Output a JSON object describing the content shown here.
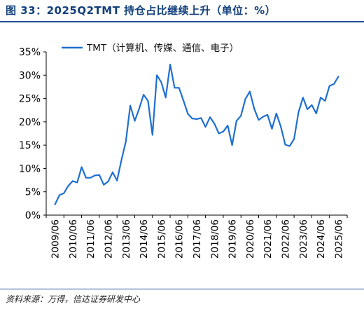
{
  "header": {
    "title": "图 33：2025Q2TMT 持仓占比继续上升（单位：%）"
  },
  "footer": {
    "source": "资料来源：万得，信达证券研发中心"
  },
  "chart_data": {
    "type": "line",
    "title": "",
    "xlabel": "",
    "ylabel": "",
    "ylim": [
      0,
      35
    ],
    "yticks": [
      "0%",
      "5%",
      "10%",
      "15%",
      "20%",
      "25%",
      "30%",
      "35%"
    ],
    "xticks": [
      "2009/06",
      "2010/06",
      "2011/06",
      "2012/06",
      "2013/06",
      "2014/06",
      "2015/06",
      "2016/06",
      "2017/06",
      "2018/06",
      "2019/06",
      "2020/06",
      "2021/06",
      "2022/06",
      "2023/06",
      "2024/06",
      "2025/06"
    ],
    "legend_position": "top-left",
    "grid": false,
    "series": [
      {
        "name": "TMT（计算机、传媒、通信、电子）",
        "color": "#1f6fd1",
        "x": [
          "2009/06",
          "2009/09",
          "2009/12",
          "2010/03",
          "2010/06",
          "2010/09",
          "2010/12",
          "2011/03",
          "2011/06",
          "2011/09",
          "2011/12",
          "2012/03",
          "2012/06",
          "2012/09",
          "2012/12",
          "2013/03",
          "2013/06",
          "2013/09",
          "2013/12",
          "2014/03",
          "2014/06",
          "2014/09",
          "2014/12",
          "2015/03",
          "2015/06",
          "2015/09",
          "2015/12",
          "2016/03",
          "2016/06",
          "2016/09",
          "2016/12",
          "2017/03",
          "2017/06",
          "2017/09",
          "2017/12",
          "2018/03",
          "2018/06",
          "2018/09",
          "2018/12",
          "2019/03",
          "2019/06",
          "2019/09",
          "2019/12",
          "2020/03",
          "2020/06",
          "2020/09",
          "2020/12",
          "2021/03",
          "2021/06",
          "2021/09",
          "2021/12",
          "2022/03",
          "2022/06",
          "2022/09",
          "2022/12",
          "2023/03",
          "2023/06",
          "2023/09",
          "2023/12",
          "2024/03",
          "2024/06",
          "2024/09",
          "2024/12",
          "2025/03",
          "2025/06"
        ],
        "values": [
          2.3,
          4.3,
          4.7,
          6.3,
          7.3,
          7.0,
          10.3,
          8.0,
          8.0,
          8.5,
          8.6,
          6.5,
          7.2,
          9.2,
          7.4,
          11.8,
          15.8,
          23.5,
          20.2,
          22.8,
          25.8,
          24.5,
          17.2,
          30.0,
          28.5,
          25.2,
          32.3,
          27.3,
          27.3,
          24.6,
          21.7,
          20.7,
          20.6,
          20.8,
          18.9,
          21.0,
          19.6,
          17.5,
          17.9,
          19.2,
          15.0,
          20.2,
          21.3,
          24.9,
          26.5,
          22.8,
          20.4,
          21.1,
          21.5,
          18.5,
          21.8,
          19.0,
          15.1,
          14.8,
          16.3,
          22.0,
          25.2,
          22.7,
          23.6,
          21.8,
          25.2,
          24.5,
          27.7,
          28.1,
          29.7
        ]
      }
    ]
  }
}
